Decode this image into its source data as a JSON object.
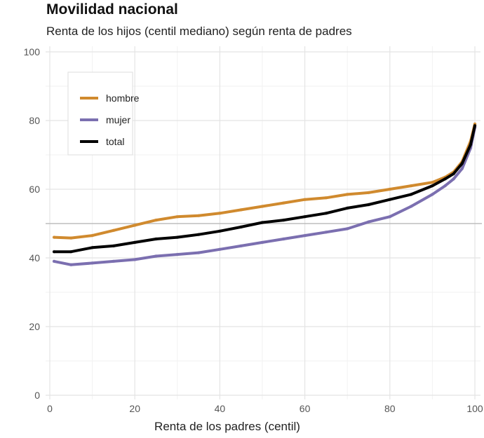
{
  "chart_data": {
    "type": "line",
    "title": "Movilidad nacional",
    "subtitle": "Renta de los hijos (centil mediano) según renta de padres",
    "xlabel": "Renta de los padres (centil)",
    "ylabel": "",
    "xlim": [
      0,
      100
    ],
    "ylim": [
      0,
      100
    ],
    "xticks": [
      0,
      20,
      40,
      60,
      80,
      100
    ],
    "yticks": [
      0,
      20,
      40,
      60,
      80,
      100
    ],
    "grid": true,
    "reference_line_y": 50,
    "legend_position": "top-left",
    "x": [
      1,
      5,
      10,
      15,
      20,
      25,
      30,
      35,
      40,
      45,
      50,
      55,
      60,
      65,
      70,
      75,
      80,
      85,
      90,
      93,
      95,
      97,
      99,
      100
    ],
    "series": [
      {
        "name": "hombre",
        "color": "#d08a2e",
        "values": [
          46,
          45.8,
          46.5,
          48,
          49.5,
          51,
          52,
          52.3,
          53,
          54,
          55,
          56,
          57,
          57.5,
          58.5,
          59,
          60,
          61,
          62,
          63.5,
          65,
          68,
          74,
          79
        ]
      },
      {
        "name": "mujer",
        "color": "#7b6fb0",
        "values": [
          39,
          38,
          38.5,
          39,
          39.5,
          40.5,
          41,
          41.5,
          42.5,
          43.5,
          44.5,
          45.5,
          46.5,
          47.5,
          48.5,
          50.5,
          52,
          55,
          58.5,
          61,
          63,
          66,
          72,
          78
        ]
      },
      {
        "name": "total",
        "color": "#000000",
        "values": [
          41.8,
          41.8,
          43,
          43.5,
          44.5,
          45.5,
          46,
          46.8,
          47.8,
          49,
          50.3,
          51,
          52,
          53,
          54.5,
          55.5,
          57,
          58.5,
          61,
          63,
          64.5,
          67.5,
          73,
          78.5
        ]
      }
    ]
  }
}
